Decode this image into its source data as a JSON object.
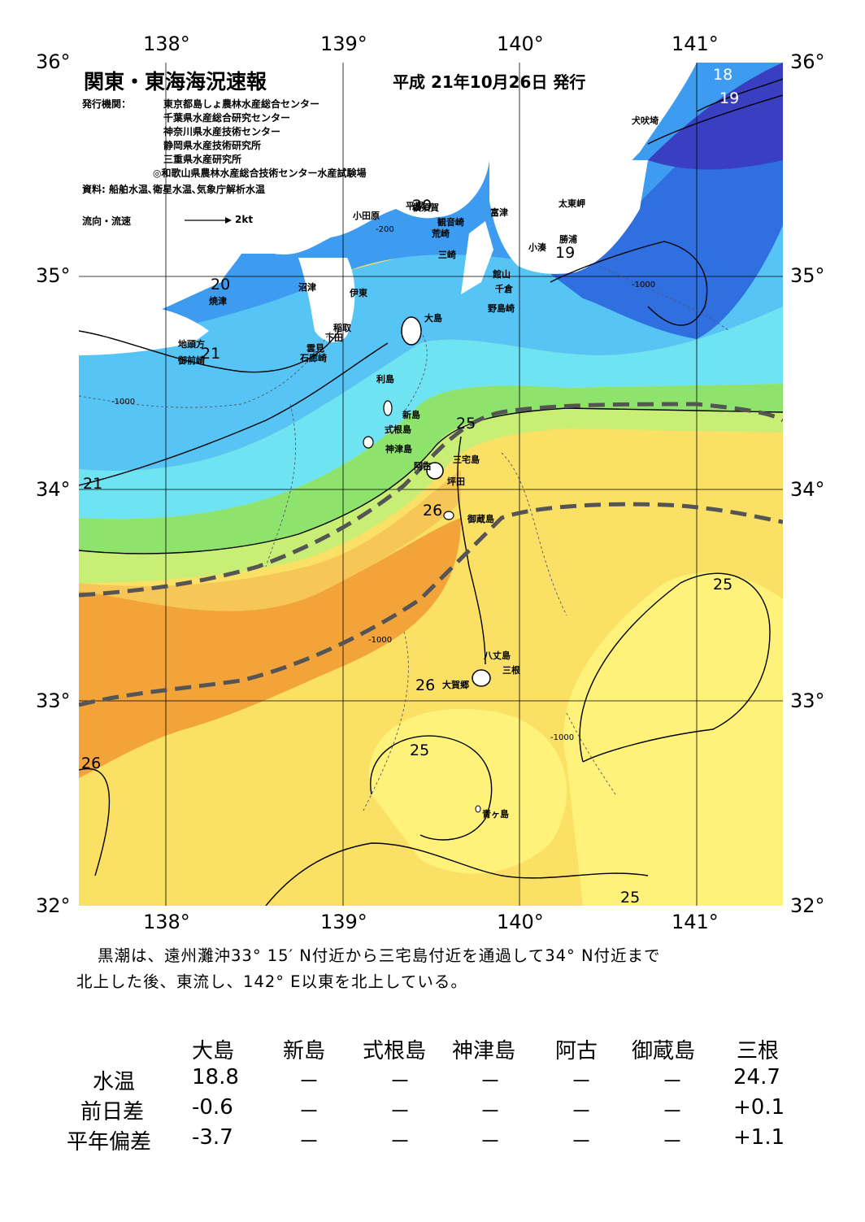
{
  "header": {
    "title": "関東・東海海況速報",
    "issue_date": "平成 21年10月26日 発行"
  },
  "issuers": {
    "label": "発行機関：",
    "agencies": [
      "東京都島しょ農林水産総合センター",
      "千葉県水産総合研究センター",
      "神奈川県水産技術センター",
      "静岡県水産技術研究所",
      "三重県水産研究所",
      "◎和歌山県農林水産総合技術センター水産試験場"
    ],
    "sources": "資料: 船舶水温､衛星水温､気象庁解析水温"
  },
  "current_legend": {
    "label": "流向・流速",
    "speed": "2kt"
  },
  "axes": {
    "lon_labels": [
      "138°",
      "139°",
      "140°",
      "141°"
    ],
    "lat_labels": [
      "36°",
      "35°",
      "34°",
      "33°",
      "32°"
    ]
  },
  "places": {
    "inubosaki": "犬吠埼",
    "taitomisaki": "太東岬",
    "katsuura": "勝浦",
    "kominato": "小湊",
    "futtsu": "富津",
    "tateyama": "館山",
    "chikura": "千倉",
    "nojimazaki": "野島崎",
    "yokosuka": "横須賀",
    "kannonzaki": "観音崎",
    "hirazuka": "平塚",
    "odawara": "小田原",
    "arasaki": "荒崎",
    "misaki": "三崎",
    "numazu": "沼津",
    "ito": "伊東",
    "inatori": "稲取",
    "shimoda": "下田",
    "kumomi": "雲見",
    "irozaki": "石廊崎",
    "yaizu": "焼津",
    "chikutokata": "地頭方",
    "omaezaki": "御前崎",
    "oshima": "大島",
    "toshima": "利島",
    "niijima": "新島",
    "shikinejima": "式根島",
    "kozushima": "神津島",
    "ako": "阿古",
    "miyakejima": "三宅島",
    "tsubota": "坪田",
    "mikurajima": "御蔵島",
    "hachijojima": "八丈島",
    "mitsune": "三根",
    "okago": "大賀郷",
    "aogashima": "青ヶ島"
  },
  "isotherm_labels": [
    "18",
    "19",
    "20",
    "19",
    "20",
    "21",
    "21",
    "25",
    "26",
    "25",
    "26",
    "25",
    "26",
    "25"
  ],
  "depth_labels": [
    "-200",
    "-1000"
  ],
  "description": [
    "黒潮は、遠州灘沖33° 15′ N付近から三宅島付近を通過して34° N付近まで",
    "北上した後、東流し、142° E以東を北上している。"
  ],
  "table": {
    "columns": [
      "大島",
      "新島",
      "式根島",
      "神津島",
      "阿古",
      "御蔵島",
      "三根"
    ],
    "rows": [
      {
        "label": "水温",
        "values": [
          "18.8",
          "－",
          "－",
          "－",
          "－",
          "－",
          "24.7"
        ]
      },
      {
        "label": "前日差",
        "values": [
          "-0.6",
          "－",
          "－",
          "－",
          "－",
          "－",
          "+0.1"
        ]
      },
      {
        "label": "平年偏差",
        "values": [
          "-3.7",
          "－",
          "－",
          "－",
          "－",
          "－",
          "+1.1"
        ]
      }
    ]
  },
  "colors": {
    "deep_blue": "#3a3fc2",
    "blue": "#2f6fe0",
    "mid_blue": "#3d9cf0",
    "light_blue": "#56c4f5",
    "cyan": "#6ee3f2",
    "green": "#8ee36c",
    "lime": "#c8ee76",
    "yellow_light": "#fff27a",
    "yellow": "#fbe066",
    "orange_light": "#f6c656",
    "orange": "#f2a43a",
    "kuroshio_axis": "#555555"
  }
}
